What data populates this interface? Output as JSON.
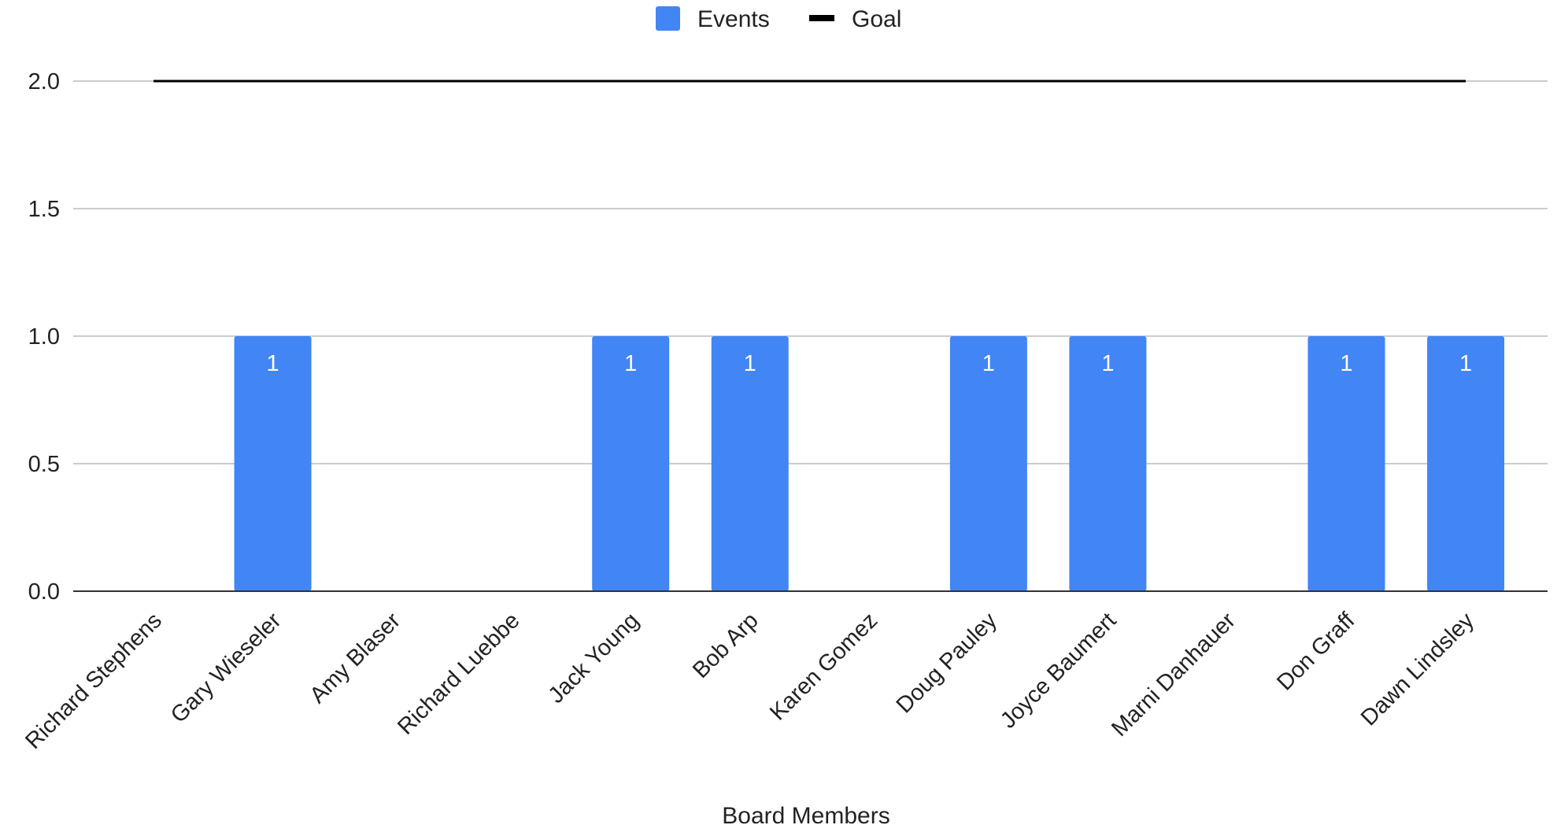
{
  "chart_data": {
    "type": "bar",
    "title": "",
    "xlabel": "Board Members",
    "ylabel": "",
    "ylim": [
      0,
      2
    ],
    "yticks": [
      "0.0",
      "0.5",
      "1.0",
      "1.5",
      "2.0"
    ],
    "ytick_values": [
      0,
      0.5,
      1,
      1.5,
      2
    ],
    "grid": true,
    "legend_position": "top-center",
    "categories": [
      "Richard Stephens",
      "Gary Wieseler",
      "Amy Blaser",
      "Richard Luebbe",
      "Jack Young",
      "Bob Arp",
      "Karen Gomez",
      "Doug Pauley",
      "Joyce Baumert",
      "Marni Danhauer",
      "Don Graff",
      "Dawn Lindsley"
    ],
    "series": [
      {
        "name": "Events",
        "kind": "bar",
        "color": "#4285f4",
        "values": [
          0,
          1,
          0,
          0,
          1,
          1,
          0,
          1,
          1,
          0,
          1,
          1
        ]
      },
      {
        "name": "Goal",
        "kind": "line",
        "color": "#000000",
        "values": [
          2,
          2,
          2,
          2,
          2,
          2,
          2,
          2,
          2,
          2,
          2,
          2
        ]
      }
    ]
  }
}
